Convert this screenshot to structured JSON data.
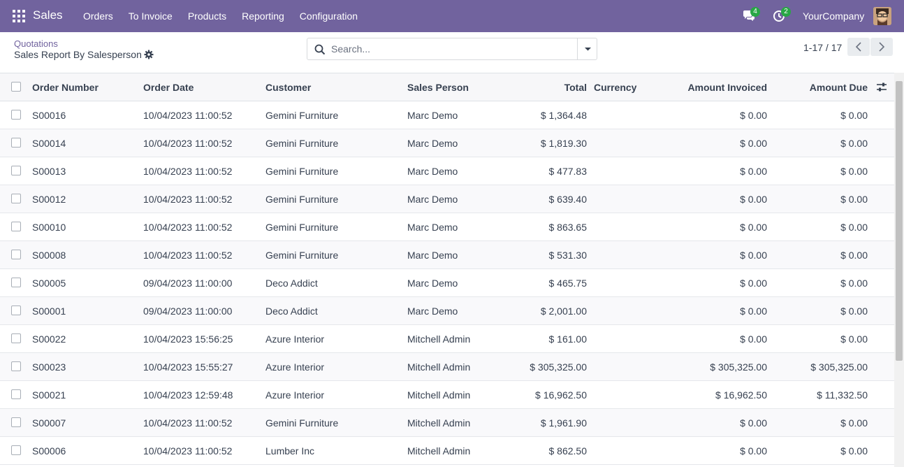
{
  "navbar": {
    "brand": "Sales",
    "menu": [
      "Orders",
      "To Invoice",
      "Products",
      "Reporting",
      "Configuration"
    ],
    "messages_badge": "4",
    "activities_badge": "2",
    "company": "YourCompany"
  },
  "control_panel": {
    "breadcrumb": "Quotations",
    "title": "Sales Report By Salesperson",
    "search_placeholder": "Search...",
    "pager": "1-17 / 17"
  },
  "table": {
    "headers": {
      "order_number": "Order Number",
      "order_date": "Order Date",
      "customer": "Customer",
      "sales_person": "Sales Person",
      "total": "Total",
      "currency": "Currency",
      "amount_invoiced": "Amount Invoiced",
      "amount_due": "Amount Due"
    },
    "rows": [
      {
        "order": "S00016",
        "date": "10/04/2023 11:00:52",
        "customer": "Gemini Furniture",
        "person": "Marc Demo",
        "total": "$ 1,364.48",
        "invoiced": "$ 0.00",
        "due": "$ 0.00"
      },
      {
        "order": "S00014",
        "date": "10/04/2023 11:00:52",
        "customer": "Gemini Furniture",
        "person": "Marc Demo",
        "total": "$ 1,819.30",
        "invoiced": "$ 0.00",
        "due": "$ 0.00"
      },
      {
        "order": "S00013",
        "date": "10/04/2023 11:00:52",
        "customer": "Gemini Furniture",
        "person": "Marc Demo",
        "total": "$ 477.83",
        "invoiced": "$ 0.00",
        "due": "$ 0.00"
      },
      {
        "order": "S00012",
        "date": "10/04/2023 11:00:52",
        "customer": "Gemini Furniture",
        "person": "Marc Demo",
        "total": "$ 639.40",
        "invoiced": "$ 0.00",
        "due": "$ 0.00"
      },
      {
        "order": "S00010",
        "date": "10/04/2023 11:00:52",
        "customer": "Gemini Furniture",
        "person": "Marc Demo",
        "total": "$ 863.65",
        "invoiced": "$ 0.00",
        "due": "$ 0.00"
      },
      {
        "order": "S00008",
        "date": "10/04/2023 11:00:52",
        "customer": "Gemini Furniture",
        "person": "Marc Demo",
        "total": "$ 531.30",
        "invoiced": "$ 0.00",
        "due": "$ 0.00"
      },
      {
        "order": "S00005",
        "date": "09/04/2023 11:00:00",
        "customer": "Deco Addict",
        "person": "Marc Demo",
        "total": "$ 465.75",
        "invoiced": "$ 0.00",
        "due": "$ 0.00"
      },
      {
        "order": "S00001",
        "date": "09/04/2023 11:00:00",
        "customer": "Deco Addict",
        "person": "Marc Demo",
        "total": "$ 2,001.00",
        "invoiced": "$ 0.00",
        "due": "$ 0.00"
      },
      {
        "order": "S00022",
        "date": "10/04/2023 15:56:25",
        "customer": "Azure Interior",
        "person": "Mitchell Admin",
        "total": "$ 161.00",
        "invoiced": "$ 0.00",
        "due": "$ 0.00"
      },
      {
        "order": "S00023",
        "date": "10/04/2023 15:55:27",
        "customer": "Azure Interior",
        "person": "Mitchell Admin",
        "total": "$ 305,325.00",
        "invoiced": "$ 305,325.00",
        "due": "$ 305,325.00"
      },
      {
        "order": "S00021",
        "date": "10/04/2023 12:59:48",
        "customer": "Azure Interior",
        "person": "Mitchell Admin",
        "total": "$ 16,962.50",
        "invoiced": "$ 16,962.50",
        "due": "$ 11,332.50"
      },
      {
        "order": "S00007",
        "date": "10/04/2023 11:00:52",
        "customer": "Gemini Furniture",
        "person": "Mitchell Admin",
        "total": "$ 1,961.90",
        "invoiced": "$ 0.00",
        "due": "$ 0.00"
      },
      {
        "order": "S00006",
        "date": "10/04/2023 11:00:52",
        "customer": "Lumber Inc",
        "person": "Mitchell Admin",
        "total": "$ 862.50",
        "invoiced": "$ 0.00",
        "due": "$ 0.00"
      }
    ]
  },
  "colors": {
    "navbar": "#71639e",
    "badge": "#28a745",
    "link": "#71639e"
  }
}
